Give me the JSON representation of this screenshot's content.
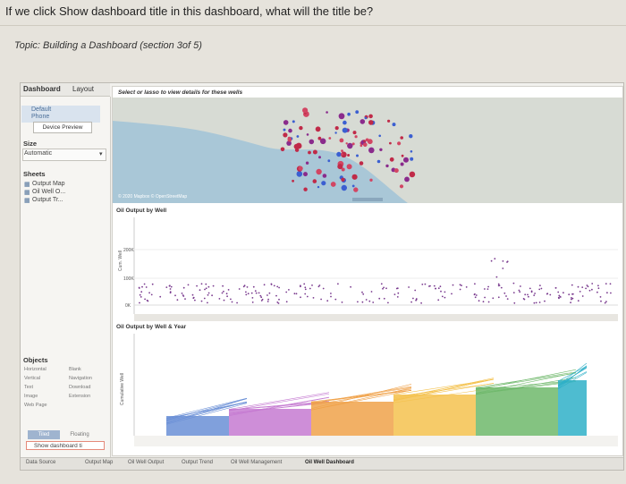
{
  "question": "If we click Show dashboard title in this dashboard, what will the title be?",
  "topic": "Topic: Building a Dashboard (section 3of 5)",
  "tabs": {
    "dashboard": "Dashboard",
    "layout": "Layout"
  },
  "sidebar": {
    "device_default": "Default",
    "device_phone": "Phone",
    "device_preview": "Device Preview",
    "size_header": "Size",
    "size_value": "Automatic",
    "sheets_header": "Sheets",
    "sheets": [
      "Output Map",
      "Oil Well O...",
      "Output Tr..."
    ],
    "objects_header": "Objects",
    "objects": [
      "Horizontal",
      "Blank",
      "Vertical",
      "Navigation",
      "Text",
      "Download",
      "Image",
      "Extension",
      "Web Page"
    ],
    "tiled": "Tiled",
    "floating": "Floating",
    "show_title": "Show dashboard ti"
  },
  "map": {
    "header": "Select or lasso to view details for these wells",
    "credit": "© 2020 Mapbox © OpenStreetMap"
  },
  "chart1": {
    "title": "Oil Output by Well",
    "y_label": "Cum. Well",
    "y_ticks": [
      "200K",
      "100K",
      "0K"
    ]
  },
  "chart2": {
    "title": "Oil Output by Well & Year",
    "y_label": "Cumulative Well"
  },
  "bottom_tabs": [
    "Data Source",
    "Output Map",
    "Oil Well Output",
    "Output Trend",
    "Oil Well Management",
    "Oil Well Dashboard"
  ]
}
